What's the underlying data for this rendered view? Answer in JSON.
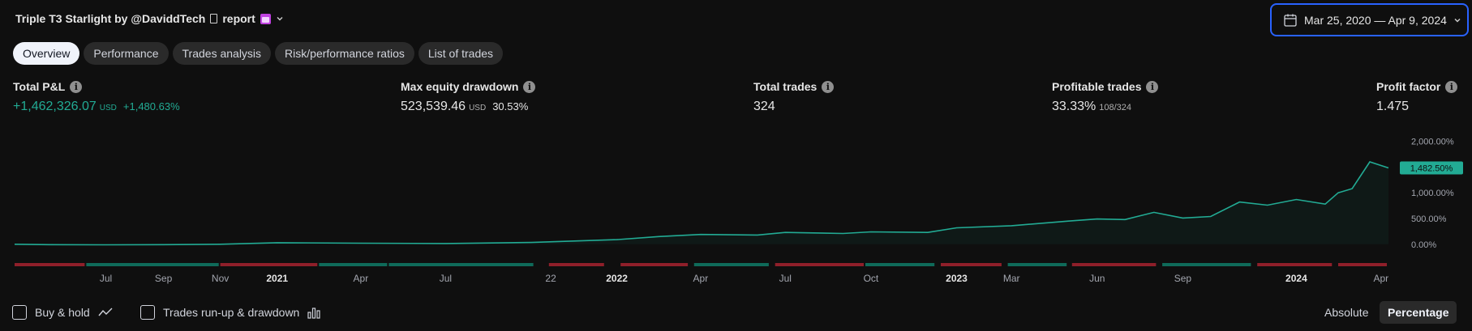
{
  "header": {
    "title": "Triple T3 Starlight by @DaviddTech",
    "title_suffix": "report",
    "date_range": "Mar 25, 2020 — Apr 9, 2024"
  },
  "tabs": [
    {
      "label": "Overview",
      "active": true
    },
    {
      "label": "Performance",
      "active": false
    },
    {
      "label": "Trades analysis",
      "active": false
    },
    {
      "label": "Risk/performance ratios",
      "active": false
    },
    {
      "label": "List of trades",
      "active": false
    }
  ],
  "metrics": {
    "total_pnl": {
      "label": "Total P&L",
      "value": "+1,462,326.07",
      "unit": "USD",
      "sub": "+1,480.63%"
    },
    "max_dd": {
      "label": "Max equity drawdown",
      "value": "523,539.46",
      "unit": "USD",
      "sub": "30.53%"
    },
    "total_trades": {
      "label": "Total trades",
      "value": "324"
    },
    "profitable": {
      "label": "Profitable trades",
      "value": "33.33%",
      "sub": "108/324"
    },
    "profit_factor": {
      "label": "Profit factor",
      "value": "1.475"
    }
  },
  "chart_data": {
    "type": "area",
    "x_start": "2020-03-25",
    "x_end": "2024-04-09",
    "y_unit": "%",
    "ylim": [
      -50,
      2150
    ],
    "y_ticks": [
      "2,000.00%",
      "1,000.00%",
      "500.00%",
      "0.00%"
    ],
    "y_tick_values": [
      2000,
      1000,
      500,
      0
    ],
    "last_value_label": "1,482.50%",
    "last_value": 1482.5,
    "x_ticks": [
      {
        "label": "Jul",
        "bold": false,
        "date": "2020-07-01"
      },
      {
        "label": "Sep",
        "bold": false,
        "date": "2020-09-01"
      },
      {
        "label": "Nov",
        "bold": false,
        "date": "2020-11-01"
      },
      {
        "label": "2021",
        "bold": true,
        "date": "2021-01-01"
      },
      {
        "label": "Apr",
        "bold": false,
        "date": "2021-04-01"
      },
      {
        "label": "Jul",
        "bold": false,
        "date": "2021-07-01"
      },
      {
        "label": "22",
        "bold": false,
        "date": "2021-10-22"
      },
      {
        "label": "2022",
        "bold": true,
        "date": "2022-01-01"
      },
      {
        "label": "Apr",
        "bold": false,
        "date": "2022-04-01"
      },
      {
        "label": "Jul",
        "bold": false,
        "date": "2022-07-01"
      },
      {
        "label": "Oct",
        "bold": false,
        "date": "2022-10-01"
      },
      {
        "label": "2023",
        "bold": true,
        "date": "2023-01-01"
      },
      {
        "label": "Mar",
        "bold": false,
        "date": "2023-03-01"
      },
      {
        "label": "Jun",
        "bold": false,
        "date": "2023-06-01"
      },
      {
        "label": "Sep",
        "bold": false,
        "date": "2023-09-01"
      },
      {
        "label": "2024",
        "bold": true,
        "date": "2024-01-01"
      },
      {
        "label": "Apr",
        "bold": false,
        "date": "2024-04-01"
      }
    ],
    "equity_series": {
      "x": [
        "2020-03-25",
        "2020-05-01",
        "2020-07-01",
        "2020-09-01",
        "2020-11-01",
        "2021-01-01",
        "2021-04-01",
        "2021-07-01",
        "2021-10-01",
        "2022-01-01",
        "2022-02-15",
        "2022-04-01",
        "2022-06-01",
        "2022-07-01",
        "2022-09-01",
        "2022-10-01",
        "2022-12-01",
        "2023-01-01",
        "2023-03-01",
        "2023-05-01",
        "2023-06-01",
        "2023-07-01",
        "2023-08-01",
        "2023-09-01",
        "2023-10-01",
        "2023-11-01",
        "2023-12-01",
        "2024-01-01",
        "2024-02-01",
        "2024-02-15",
        "2024-03-01",
        "2024-03-20",
        "2024-04-09"
      ],
      "y": [
        0,
        -8,
        -10,
        -8,
        0,
        30,
        20,
        15,
        35,
        90,
        150,
        190,
        180,
        230,
        210,
        240,
        230,
        320,
        360,
        450,
        490,
        480,
        620,
        510,
        540,
        820,
        760,
        870,
        780,
        1000,
        1080,
        1600,
        1482.5
      ]
    },
    "trade_strip": [
      {
        "from": "2020-03-25",
        "to": "2020-06-10",
        "result": "loss"
      },
      {
        "from": "2020-06-10",
        "to": "2020-11-01",
        "result": "win"
      },
      {
        "from": "2020-11-01",
        "to": "2021-02-15",
        "result": "loss"
      },
      {
        "from": "2021-02-15",
        "to": "2021-05-01",
        "result": "win"
      },
      {
        "from": "2021-05-01",
        "to": "2021-10-05",
        "result": "win"
      },
      {
        "from": "2021-10-20",
        "to": "2021-12-20",
        "result": "loss"
      },
      {
        "from": "2022-01-05",
        "to": "2022-03-20",
        "result": "loss"
      },
      {
        "from": "2022-03-25",
        "to": "2022-06-15",
        "result": "win"
      },
      {
        "from": "2022-06-20",
        "to": "2022-09-25",
        "result": "loss"
      },
      {
        "from": "2022-09-25",
        "to": "2022-12-10",
        "result": "win"
      },
      {
        "from": "2022-12-15",
        "to": "2023-02-20",
        "result": "loss"
      },
      {
        "from": "2023-02-25",
        "to": "2023-05-01",
        "result": "win"
      },
      {
        "from": "2023-05-05",
        "to": "2023-08-05",
        "result": "loss"
      },
      {
        "from": "2023-08-10",
        "to": "2023-11-15",
        "result": "win"
      },
      {
        "from": "2023-11-20",
        "to": "2024-02-10",
        "result": "loss"
      },
      {
        "from": "2024-02-15",
        "to": "2024-04-09",
        "result": "loss"
      }
    ]
  },
  "footer": {
    "buy_hold": "Buy & hold",
    "runup": "Trades run-up & drawdown",
    "absolute": "Absolute",
    "percentage": "Percentage"
  },
  "colors": {
    "accent_blue": "#2962ff",
    "positive": "#22ab94",
    "negative": "#f23645"
  }
}
